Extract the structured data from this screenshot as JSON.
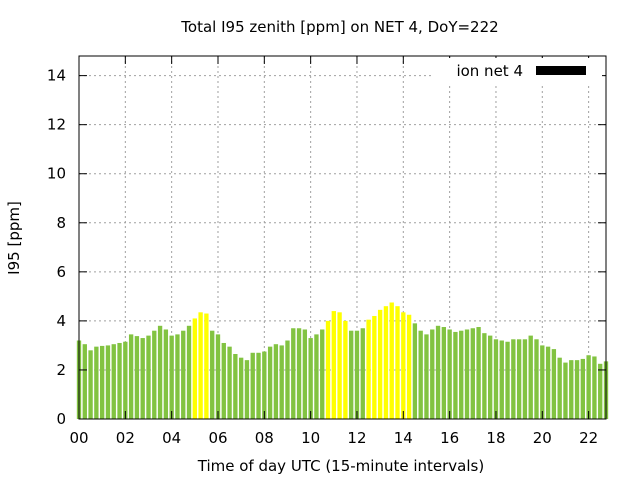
{
  "chart_data": {
    "type": "bar",
    "title": "Total I95 zenith [ppm] on NET 4, DoY=222",
    "xlabel": "Time of day UTC (15-minute intervals)",
    "ylabel": "I95 [ppm]",
    "ylim": [
      0,
      14.8
    ],
    "xlim": [
      0,
      22.75
    ],
    "yticks": [
      "0",
      "2",
      "4",
      "6",
      "8",
      "10",
      "12",
      "14"
    ],
    "xticks": [
      "00",
      "02",
      "04",
      "06",
      "08",
      "10",
      "12",
      "14",
      "16",
      "18",
      "20",
      "22"
    ],
    "grid": true,
    "legend": {
      "label": "ion net 4",
      "position": "top-right"
    },
    "colors": {
      "normal": "#82c341",
      "high": "#ffff00",
      "legend": "#000000"
    },
    "high_threshold": 3.95,
    "bar_interval_hours": 0.25,
    "values": [
      3.2,
      3.05,
      2.8,
      2.95,
      2.98,
      3.0,
      3.05,
      3.1,
      3.15,
      3.45,
      3.38,
      3.3,
      3.4,
      3.6,
      3.8,
      3.65,
      3.4,
      3.45,
      3.6,
      3.8,
      4.1,
      4.35,
      4.3,
      3.6,
      3.45,
      3.1,
      2.95,
      2.65,
      2.5,
      2.4,
      2.7,
      2.7,
      2.75,
      2.95,
      3.05,
      3.0,
      3.2,
      3.7,
      3.7,
      3.65,
      3.3,
      3.45,
      3.65,
      4.0,
      4.4,
      4.35,
      4.0,
      3.6,
      3.6,
      3.7,
      4.05,
      4.2,
      4.45,
      4.6,
      4.75,
      4.6,
      4.35,
      4.25,
      3.9,
      3.6,
      3.45,
      3.65,
      3.8,
      3.75,
      3.65,
      3.55,
      3.6,
      3.65,
      3.7,
      3.75,
      3.5,
      3.4,
      3.25,
      3.2,
      3.15,
      3.25,
      3.25,
      3.25,
      3.4,
      3.25,
      3.0,
      2.95,
      2.85,
      2.5,
      2.3,
      2.4,
      2.4,
      2.45,
      2.6,
      2.55,
      2.25,
      2.35
    ]
  }
}
